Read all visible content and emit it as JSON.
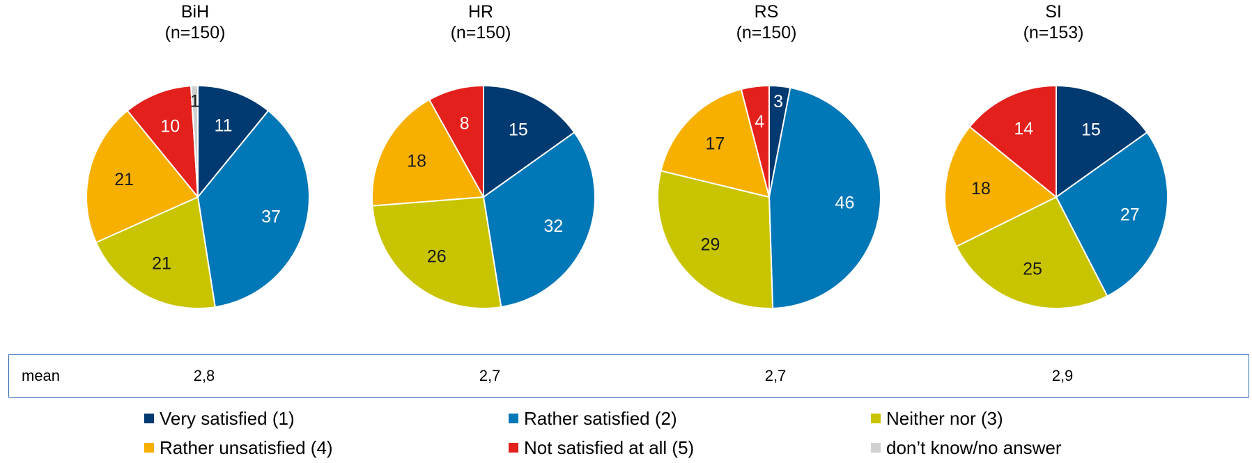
{
  "chart_data": {
    "type": "pie",
    "categories": [
      "Very satisfied (1)",
      "Rather satisfied (2)",
      "Neither nor (3)",
      "Rather unsatisfied (4)",
      "Not satisfied at all (5)",
      "don’t know/no answer"
    ],
    "colors": [
      "#003a70",
      "#0077b6",
      "#c8c400",
      "#f7b000",
      "#e3201c",
      "#d0d0d0"
    ],
    "label_colors": [
      "#ffffff",
      "#ffffff",
      "#1a1a1a",
      "#1a1a1a",
      "#ffffff",
      "#1a1a1a"
    ],
    "charts": [
      {
        "name": "BiH",
        "n": "(n=150)",
        "values": [
          11,
          37,
          21,
          21,
          10,
          1
        ]
      },
      {
        "name": "HR",
        "n": "(n=150)",
        "values": [
          15,
          32,
          26,
          18,
          8,
          0
        ]
      },
      {
        "name": "RS",
        "n": "(n=150)",
        "values": [
          3,
          46,
          29,
          17,
          4,
          0
        ]
      },
      {
        "name": "SI",
        "n": "(n=153)",
        "values": [
          15,
          27,
          25,
          18,
          14,
          0
        ]
      }
    ],
    "mean_label": "mean",
    "means": [
      "2,8",
      "2,7",
      "2,7",
      "2,9"
    ]
  },
  "legend": [
    {
      "label": "Very satisfied (1)",
      "color": "#003a70"
    },
    {
      "label": "Rather satisfied (2)",
      "color": "#0077b6"
    },
    {
      "label": "Neither nor (3)",
      "color": "#c8c400"
    },
    {
      "label": "Rather unsatisfied (4)",
      "color": "#f7b000"
    },
    {
      "label": "Not satisfied at all (5)",
      "color": "#e3201c"
    },
    {
      "label": "don’t know/no answer",
      "color": "#d0d0d0"
    }
  ]
}
